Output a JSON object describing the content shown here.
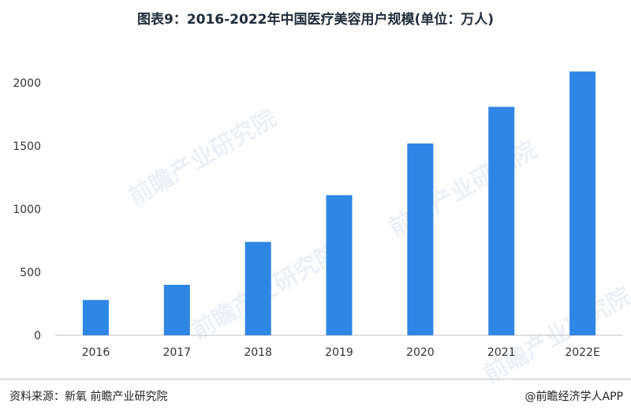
{
  "title": "图表9：2016-2022年中国医疗美容用户规模(单位：万人)",
  "source": "资料来源：新氧 前瞻产业研究院",
  "credit": "@前瞻经济学人APP",
  "watermark": "前瞻产业研究院",
  "colors": {
    "bar": "#2e86e5",
    "axis": "#bfbfbf",
    "text": "#333333"
  },
  "chart_data": {
    "type": "bar",
    "title": "图表9：2016-2022年中国医疗美容用户规模(单位：万人)",
    "categories": [
      "2016",
      "2017",
      "2018",
      "2019",
      "2020",
      "2021",
      "2022E"
    ],
    "values": [
      280,
      400,
      740,
      1110,
      1520,
      1810,
      2090
    ],
    "ylim": [
      0,
      2000
    ],
    "yticks": [
      0,
      500,
      1000,
      1500,
      2000
    ],
    "xlabel": "",
    "ylabel": "",
    "grid": false
  }
}
